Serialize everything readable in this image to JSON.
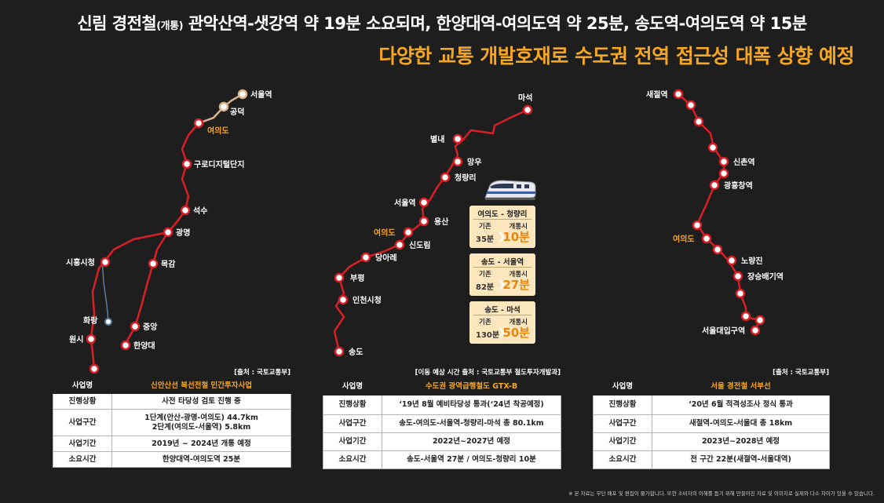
{
  "header": {
    "title_a": "신림 경전철",
    "title_b": "(개통)",
    "title_c": " 관악산역-샛강역 약 19분 소요되며, 한양대역-여의도역 약 25분, 송도역-여의도역 약 15분",
    "subtitle": "다양한 교통 개발호재로 수도권 전역 접근성 대폭 상향 예정"
  },
  "colors": {
    "line_red": "#d81f26",
    "accent": "#f5a623",
    "station_fill": "#ffffff"
  },
  "map1": {
    "stations": [
      "서울역",
      "공덕",
      "여의도",
      "구로디지털단지",
      "석수",
      "광명",
      "시흥시청",
      "목감",
      "화랑",
      "중앙",
      "원시",
      "한양대"
    ]
  },
  "map2": {
    "stations": [
      "마석",
      "별내",
      "망우",
      "청량리",
      "서울역",
      "용산",
      "여의도",
      "신도림",
      "당아레",
      "부평",
      "인천시청",
      "송도"
    ]
  },
  "map3": {
    "stations": [
      "새절역",
      "신촌역",
      "광흥창역",
      "여의도",
      "노량진",
      "장승배기역",
      "서울대입구역"
    ]
  },
  "cards": [
    {
      "route": "여의도 - 청량리",
      "old_label": "기존",
      "new_label": "개통시",
      "old_value": "35분",
      "new_value": "10분"
    },
    {
      "route": "송도 - 서울역",
      "old_label": "기존",
      "new_label": "개통시",
      "old_value": "82분",
      "new_value": "27분"
    },
    {
      "route": "송도 - 마석",
      "old_label": "기존",
      "new_label": "개통시",
      "old_value": "130분",
      "new_value": "50분"
    }
  ],
  "tables": [
    {
      "source": "[출처 : 국토교통부]",
      "rows": [
        {
          "key": "사업명",
          "value": "신안산선 복선전철 민간투자사업"
        },
        {
          "key": "진행상황",
          "value": "사전 타당성 검토 진행 중"
        },
        {
          "key": "사업구간",
          "value": "1단계(안산-광명-여의도) 44.7km",
          "value2": "2단계(여의도-서울역) 5.8km"
        },
        {
          "key": "사업기간",
          "value": "2019년 ~ 2024년 개통 예정"
        },
        {
          "key": "소요시간",
          "value": "한양대역-여의도역 25분"
        }
      ]
    },
    {
      "source": "[이동 예상 시간 출처 : 국토교통부 철도투자개발과]",
      "rows": [
        {
          "key": "사업명",
          "value": "수도권 광역급행철도 GTX-B"
        },
        {
          "key": "진행상황",
          "value": "‘19년 8월 예비타당성 통과(‘24년 착공예정)"
        },
        {
          "key": "사업구간",
          "value": "송도-여의도-서울역-청량리-마석 총 80.1km"
        },
        {
          "key": "사업기간",
          "value": "2022년~2027년 예정"
        },
        {
          "key": "소요시간",
          "value": "송도-서울역 27분 / 여의도-청량리 10분"
        }
      ]
    },
    {
      "source": "[출처 : 국토교통부]",
      "rows": [
        {
          "key": "사업명",
          "value": "서울 경전철 서부선"
        },
        {
          "key": "진행상황",
          "value": "‘20년 6월 적격성조사 정식 통과"
        },
        {
          "key": "사업구간",
          "value": "새절역-여의도-서울대 총 18km"
        },
        {
          "key": "사업기간",
          "value": "2023년~2028년 예정"
        },
        {
          "key": "소요시간",
          "value": "전 구간 22분(새절역-서울대역)"
        }
      ]
    }
  ],
  "footnote": "※ 본 자료는 무단 배포 및 편집이 불가합니다. 또한 소비자의 이해를 돕기 위해 만들어진 자료 및 이미지로 실제와 다소 차이가 있을 수 있습니다."
}
